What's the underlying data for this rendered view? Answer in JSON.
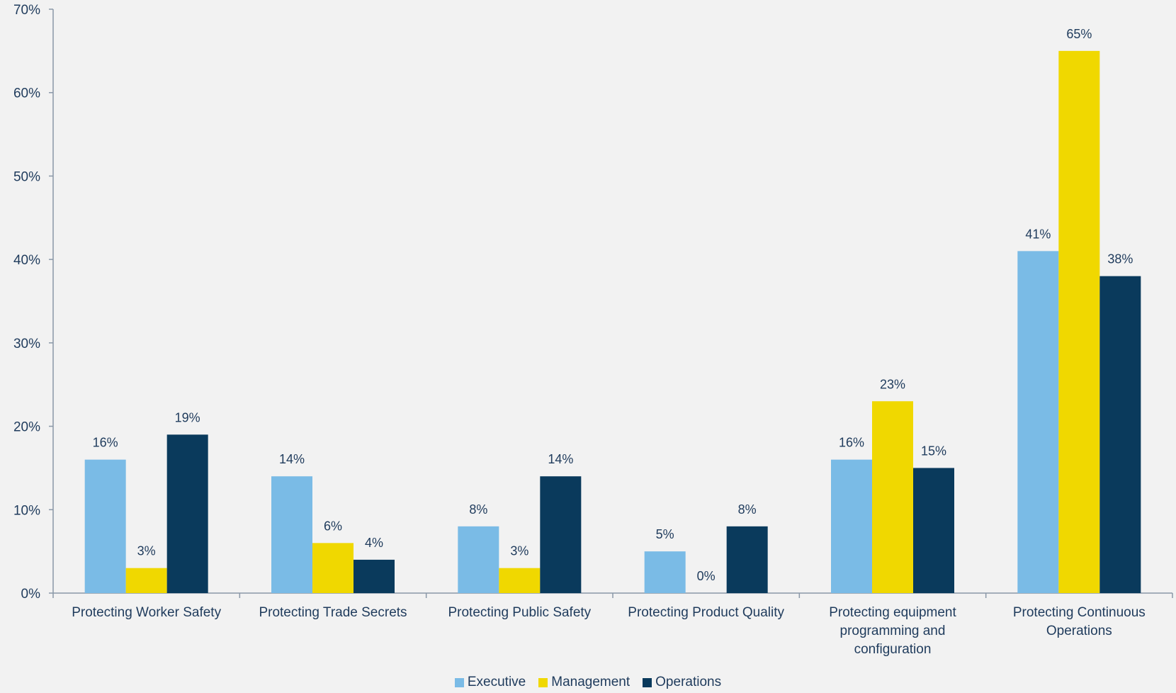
{
  "chart_data": {
    "type": "bar",
    "categories": [
      [
        "Protecting Worker Safety"
      ],
      [
        "Protecting Trade Secrets"
      ],
      [
        "Protecting Public Safety"
      ],
      [
        "Protecting Product Quality"
      ],
      [
        "Protecting equipment",
        "programming and",
        "configuration"
      ],
      [
        "Protecting Continuous",
        "Operations"
      ]
    ],
    "series": [
      {
        "name": "Executive",
        "color": "#7abbe6",
        "values": [
          16,
          14,
          8,
          5,
          16,
          41
        ],
        "labels": [
          "16%",
          "14%",
          "8%",
          "5%",
          "16%",
          "41%"
        ]
      },
      {
        "name": "Management",
        "color": "#f0d800",
        "values": [
          3,
          6,
          3,
          0,
          23,
          65
        ],
        "labels": [
          "3%",
          "6%",
          "3%",
          "0%",
          "23%",
          "65%"
        ]
      },
      {
        "name": "Operations",
        "color": "#0a3a5c",
        "values": [
          19,
          4,
          14,
          8,
          15,
          38
        ],
        "labels": [
          "19%",
          "4%",
          "14%",
          "8%",
          "15%",
          "38%"
        ]
      }
    ],
    "y_ticks": [
      "0%",
      "10%",
      "20%",
      "30%",
      "40%",
      "50%",
      "60%",
      "70%"
    ],
    "ylim": [
      0,
      70
    ],
    "legend_position": "bottom",
    "grid": false,
    "title": "",
    "xlabel": "",
    "ylabel": ""
  },
  "colors": {
    "axis": "#8a98a8",
    "text": "#1f3b5c",
    "background": "#f2f2f2"
  }
}
